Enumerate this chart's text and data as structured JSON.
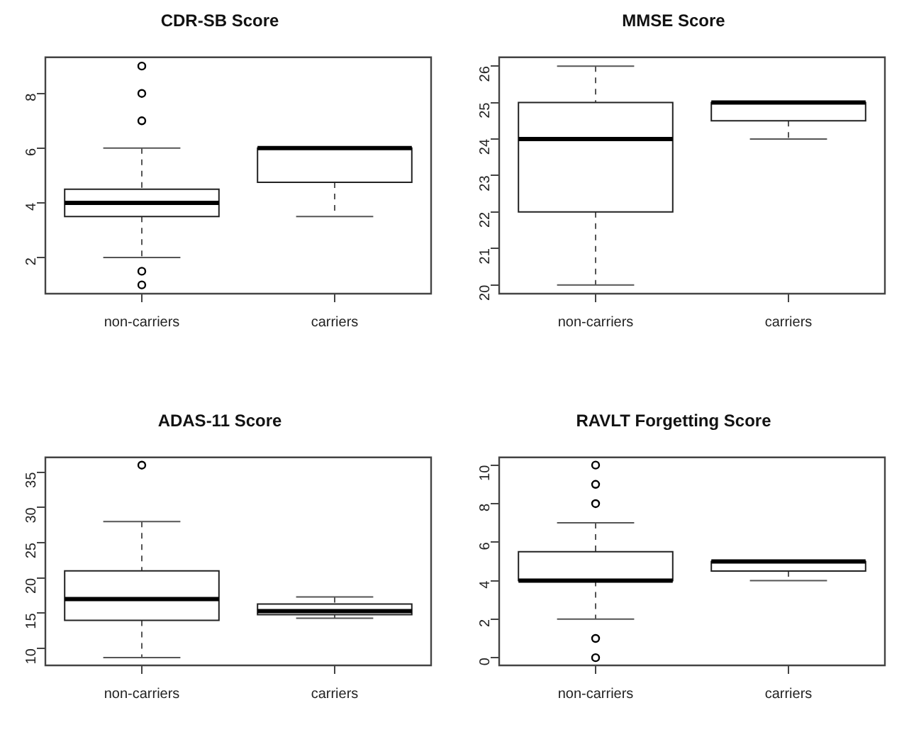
{
  "chart_data": [
    {
      "type": "box",
      "title": "CDR-SB Score",
      "categories": [
        "non-carriers",
        "carriers"
      ],
      "ylim": [
        0.68,
        9.32
      ],
      "yticks": [
        2,
        4,
        6,
        8
      ],
      "boxes": [
        {
          "low": 2,
          "q1": 3.5,
          "median": 4,
          "q3": 4.5,
          "high": 6,
          "outliers": [
            1,
            1.5,
            7,
            8,
            9
          ]
        },
        {
          "low": 3.5,
          "q1": 4.75,
          "median": 6,
          "q3": 6,
          "high": 6
        }
      ]
    },
    {
      "type": "box",
      "title": "MMSE Score",
      "categories": [
        "non-carriers",
        "carriers"
      ],
      "ylim": [
        19.76,
        26.24
      ],
      "yticks": [
        20,
        21,
        22,
        23,
        24,
        25,
        26
      ],
      "boxes": [
        {
          "low": 20,
          "q1": 22,
          "median": 24,
          "q3": 25,
          "high": 26
        },
        {
          "low": 24,
          "q1": 24.5,
          "median": 25,
          "q3": 25,
          "high": 25
        }
      ]
    },
    {
      "type": "box",
      "title": "ADAS-11 Score",
      "categories": [
        "non-carriers",
        "carriers"
      ],
      "ylim": [
        7.6,
        37.1
      ],
      "yticks": [
        10,
        15,
        20,
        25,
        30,
        35
      ],
      "boxes": [
        {
          "low": 8.7,
          "q1": 14,
          "median": 17,
          "q3": 21,
          "high": 28,
          "outliers": [
            36
          ]
        },
        {
          "low": 14.3,
          "q1": 14.8,
          "median": 15.3,
          "q3": 16.3,
          "high": 17.3
        }
      ]
    },
    {
      "type": "box",
      "title": "RAVLT Forgetting Score",
      "categories": [
        "non-carriers",
        "carriers"
      ],
      "ylim": [
        -0.4,
        10.4
      ],
      "yticks": [
        0,
        2,
        4,
        6,
        8,
        10
      ],
      "boxes": [
        {
          "low": 2,
          "q1": 4,
          "median": 4,
          "q3": 5.5,
          "high": 7,
          "outliers": [
            0,
            1,
            8,
            9,
            10
          ]
        },
        {
          "low": 4,
          "q1": 4.5,
          "median": 5,
          "q3": 5,
          "high": 5
        }
      ]
    }
  ]
}
